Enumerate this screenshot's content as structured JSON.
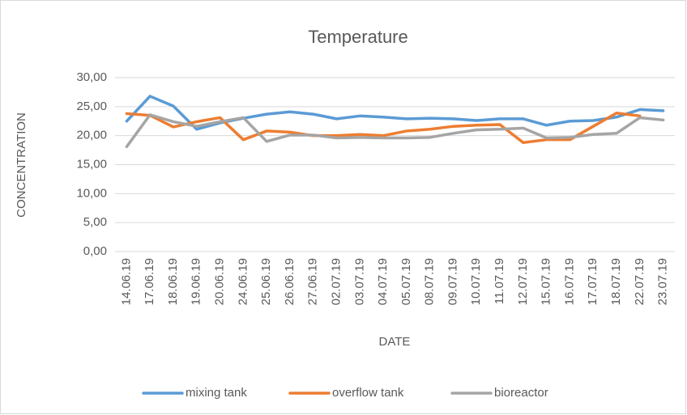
{
  "chart_data": {
    "type": "line",
    "title": "Temperature",
    "x_label": "DATE",
    "y_label": "CONCENTRATION",
    "categories": [
      "14.06.19",
      "17.06.19",
      "18.06.19",
      "19.06.19",
      "20.06.19",
      "24.06.19",
      "25.06.19",
      "26.06.19",
      "27.06.19",
      "02.07.19",
      "03.07.19",
      "04.07.19",
      "05.07.19",
      "08.07.19",
      "09.07.19",
      "10.07.19",
      "11.07.19",
      "12.07.19",
      "15.07.19",
      "16.07.19",
      "17.07.19",
      "18.07.19",
      "22.07.19",
      "23.07.19"
    ],
    "series": [
      {
        "name": "mixing tank",
        "color": "#5b9bd5",
        "values": [
          22.5,
          26.8,
          25.1,
          21.1,
          22.2,
          23.0,
          23.7,
          24.1,
          23.7,
          22.9,
          23.4,
          23.2,
          22.9,
          23.0,
          22.9,
          22.6,
          22.9,
          22.9,
          21.8,
          22.5,
          22.6,
          23.2,
          24.5,
          24.3
        ]
      },
      {
        "name": "overflow tank",
        "color": "#ed7d31",
        "values": [
          23.8,
          23.5,
          21.5,
          22.4,
          23.1,
          19.3,
          20.8,
          20.6,
          20.0,
          20.0,
          20.2,
          20.0,
          20.8,
          21.1,
          21.6,
          21.8,
          21.9,
          18.8,
          19.3,
          19.3,
          21.6,
          23.9,
          23.4,
          null
        ]
      },
      {
        "name": "bioreactor",
        "color": "#a5a5a5",
        "values": [
          18.1,
          23.6,
          22.4,
          21.6,
          22.4,
          23.1,
          19.0,
          20.1,
          20.1,
          19.6,
          19.7,
          19.6,
          19.6,
          19.7,
          20.4,
          21.0,
          21.1,
          21.3,
          19.6,
          19.7,
          20.2,
          20.4,
          23.1,
          22.7
        ]
      }
    ],
    "ylim": [
      0,
      30
    ],
    "yticks": [
      {
        "value": 0,
        "label": "0,00"
      },
      {
        "value": 5,
        "label": "5,00"
      },
      {
        "value": 10,
        "label": "10,00"
      },
      {
        "value": 15,
        "label": "15,00"
      },
      {
        "value": 20,
        "label": "20,00"
      },
      {
        "value": 25,
        "label": "25,00"
      },
      {
        "value": 30,
        "label": "30,00"
      }
    ],
    "grid": true,
    "legend": "bottom"
  }
}
